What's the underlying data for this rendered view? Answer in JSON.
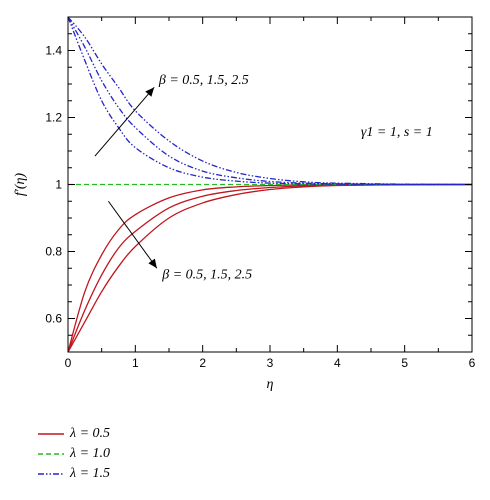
{
  "chart_data": {
    "type": "line",
    "xlabel": "η",
    "ylabel": "f′(η)",
    "xlim": [
      0,
      6
    ],
    "ylim": [
      0.5,
      1.5
    ],
    "x_ticks": [
      "0",
      "1",
      "2",
      "3",
      "4",
      "5",
      "6"
    ],
    "y_ticks": [
      "0.6",
      "0.8",
      "1",
      "1.2",
      "1.4"
    ],
    "x_tick_values": [
      0,
      1,
      2,
      3,
      4,
      5,
      6
    ],
    "y_tick_values": [
      0.6,
      0.8,
      1.0,
      1.2,
      1.4
    ],
    "grid": false,
    "legend_position": "below-left",
    "annotations": {
      "upper_beta": "β = 0.5, 1.5, 2.5",
      "lower_beta": "β = 0.5, 1.5, 2.5",
      "params": "γ1 = 1, s = 1"
    },
    "legend": [
      {
        "label": "λ = 0.5",
        "color": "#c0161e",
        "dash": "solid"
      },
      {
        "label": "λ = 1.0",
        "color": "#22bb22",
        "dash": "dashed"
      },
      {
        "label": "λ = 1.5",
        "color": "#2525c8",
        "dash": "dash-dot-dot"
      }
    ],
    "series": [
      {
        "group": "λ = 0.5",
        "beta": 0.5,
        "color": "#c0161e",
        "dash": "solid",
        "x": [
          0,
          0.25,
          0.5,
          0.75,
          1,
          1.5,
          2,
          2.5,
          3,
          3.5,
          4,
          5,
          6
        ],
        "y": [
          0.5,
          0.68,
          0.79,
          0.865,
          0.91,
          0.96,
          0.984,
          0.993,
          0.997,
          0.999,
          1.0,
          1.0,
          1.0
        ]
      },
      {
        "group": "λ = 0.5",
        "beta": 1.5,
        "color": "#c0161e",
        "dash": "solid",
        "x": [
          0,
          0.25,
          0.5,
          0.75,
          1,
          1.5,
          2,
          2.5,
          3,
          3.5,
          4,
          5,
          6
        ],
        "y": [
          0.5,
          0.625,
          0.73,
          0.81,
          0.86,
          0.93,
          0.965,
          0.982,
          0.991,
          0.996,
          0.998,
          1.0,
          1.0
        ]
      },
      {
        "group": "λ = 0.5",
        "beta": 2.5,
        "color": "#c0161e",
        "dash": "solid",
        "x": [
          0,
          0.25,
          0.5,
          0.75,
          1,
          1.5,
          2,
          2.5,
          3,
          3.5,
          4,
          5,
          6
        ],
        "y": [
          0.5,
          0.59,
          0.68,
          0.755,
          0.815,
          0.9,
          0.945,
          0.97,
          0.985,
          0.993,
          0.997,
          0.999,
          1.0
        ]
      },
      {
        "group": "λ = 1.0",
        "beta": 0.5,
        "color": "#22bb22",
        "dash": "dashed",
        "x": [
          0,
          6
        ],
        "y": [
          1.0,
          1.0
        ]
      },
      {
        "group": "λ = 1.5",
        "beta": 0.5,
        "color": "#2525c8",
        "dash": "dash-dot-dot",
        "x": [
          0,
          0.25,
          0.5,
          0.75,
          1,
          1.5,
          2,
          2.5,
          3,
          3.5,
          4,
          5,
          6
        ],
        "y": [
          1.5,
          1.37,
          1.25,
          1.17,
          1.11,
          1.05,
          1.022,
          1.01,
          1.004,
          1.002,
          1.001,
          1.0,
          1.0
        ]
      },
      {
        "group": "λ = 1.5",
        "beta": 1.5,
        "color": "#2525c8",
        "dash": "dash-dot-dot",
        "x": [
          0,
          0.25,
          0.5,
          0.75,
          1,
          1.5,
          2,
          2.5,
          3,
          3.5,
          4,
          5,
          6
        ],
        "y": [
          1.5,
          1.41,
          1.31,
          1.23,
          1.17,
          1.085,
          1.04,
          1.02,
          1.009,
          1.004,
          1.002,
          1.0,
          1.0
        ]
      },
      {
        "group": "λ = 1.5",
        "beta": 2.5,
        "color": "#2525c8",
        "dash": "dash-dot-dot",
        "x": [
          0,
          0.25,
          0.5,
          0.75,
          1,
          1.5,
          2,
          2.5,
          3,
          3.5,
          4,
          5,
          6
        ],
        "y": [
          1.5,
          1.44,
          1.36,
          1.29,
          1.22,
          1.13,
          1.07,
          1.036,
          1.018,
          1.008,
          1.004,
          1.001,
          1.0
        ]
      }
    ]
  }
}
